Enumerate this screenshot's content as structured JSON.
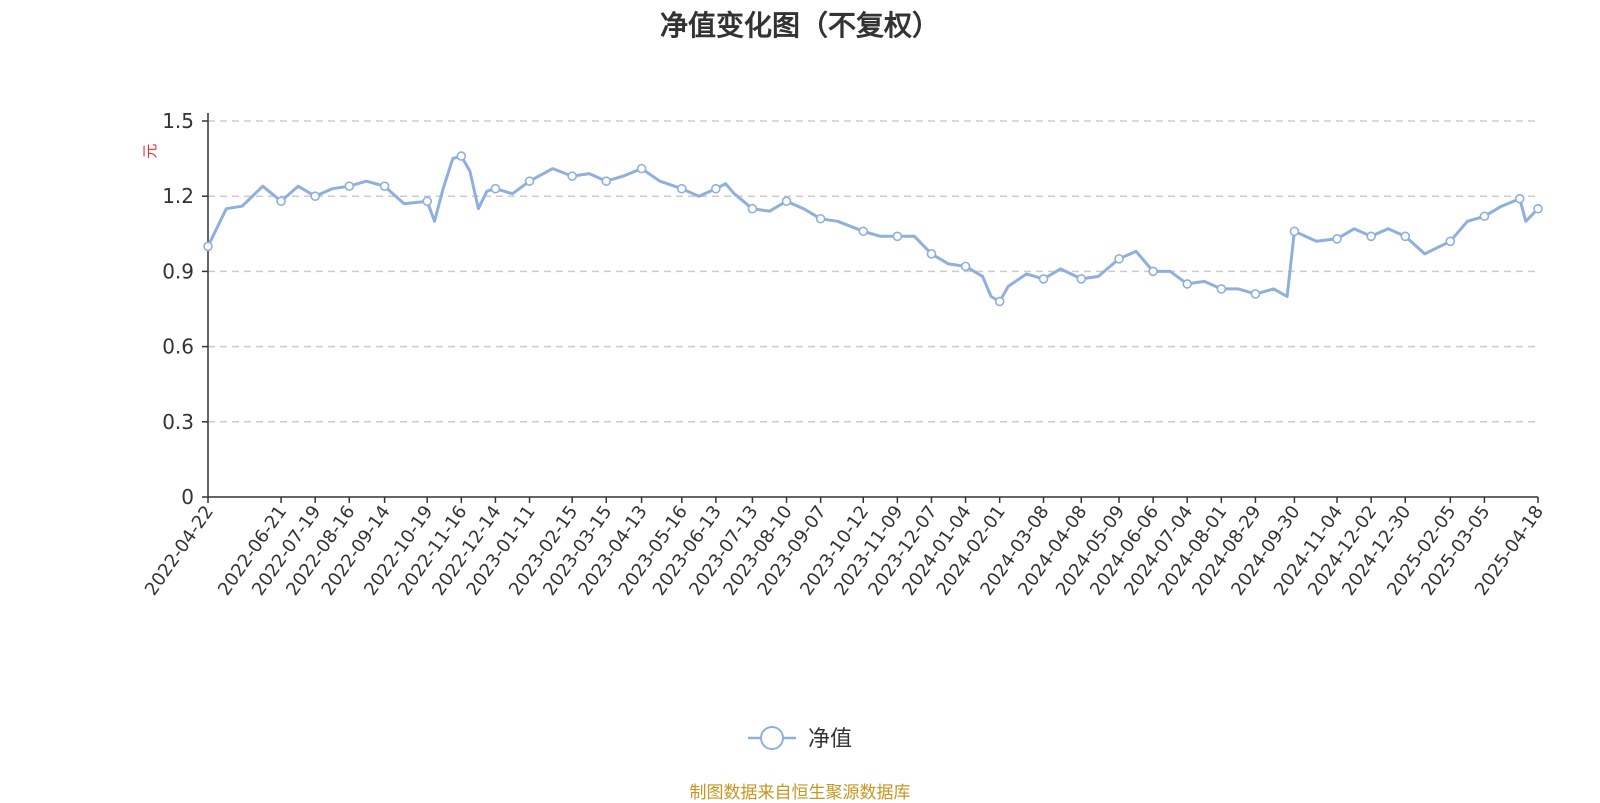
{
  "title": "净值变化图（不复权）",
  "source": "制图数据来自恒生聚源数据库",
  "chart_data": {
    "type": "line",
    "y_unit": "元",
    "ylim": [
      0,
      1.5
    ],
    "y_ticks": [
      "0",
      "0.3",
      "0.6",
      "0.9",
      "1.2",
      "1.5"
    ],
    "grid": "horizontal dashed",
    "legend": "bottom-center",
    "x_ticks": [
      "2022-04-22",
      "2022-06-21",
      "2022-07-19",
      "2022-08-16",
      "2022-09-14",
      "2022-10-19",
      "2022-11-16",
      "2022-12-14",
      "2023-01-11",
      "2023-02-15",
      "2023-03-15",
      "2023-04-13",
      "2023-05-16",
      "2023-06-13",
      "2023-07-13",
      "2023-08-10",
      "2023-09-07",
      "2023-10-12",
      "2023-11-09",
      "2023-12-07",
      "2024-01-04",
      "2024-02-01",
      "2024-03-08",
      "2024-04-08",
      "2024-05-09",
      "2024-06-06",
      "2024-07-04",
      "2024-08-01",
      "2024-08-29",
      "2024-09-30",
      "2024-11-04",
      "2024-12-02",
      "2024-12-30",
      "2025-02-05",
      "2025-03-05",
      "2025-04-18"
    ],
    "series": [
      {
        "name": "净值",
        "color": "#8fb0dc",
        "x": [
          "2022-04-22",
          "2022-05-07",
          "2022-05-20",
          "2022-06-06",
          "2022-06-21",
          "2022-07-05",
          "2022-07-19",
          "2022-08-02",
          "2022-08-16",
          "2022-08-30",
          "2022-09-14",
          "2022-09-30",
          "2022-10-19",
          "2022-10-25",
          "2022-11-01",
          "2022-11-09",
          "2022-11-16",
          "2022-11-23",
          "2022-11-30",
          "2022-12-07",
          "2022-12-14",
          "2022-12-28",
          "2023-01-11",
          "2023-01-30",
          "2023-02-15",
          "2023-03-01",
          "2023-03-15",
          "2023-03-29",
          "2023-04-13",
          "2023-04-28",
          "2023-05-16",
          "2023-05-30",
          "2023-06-13",
          "2023-06-21",
          "2023-06-28",
          "2023-07-13",
          "2023-07-27",
          "2023-08-10",
          "2023-08-24",
          "2023-09-07",
          "2023-09-21",
          "2023-10-12",
          "2023-10-26",
          "2023-11-09",
          "2023-11-23",
          "2023-12-07",
          "2023-12-21",
          "2024-01-04",
          "2024-01-18",
          "2024-01-25",
          "2024-02-01",
          "2024-02-08",
          "2024-02-23",
          "2024-03-08",
          "2024-03-22",
          "2024-04-08",
          "2024-04-22",
          "2024-05-09",
          "2024-05-23",
          "2024-06-06",
          "2024-06-20",
          "2024-07-04",
          "2024-07-18",
          "2024-08-01",
          "2024-08-15",
          "2024-08-29",
          "2024-09-13",
          "2024-09-24",
          "2024-09-30",
          "2024-10-18",
          "2024-11-04",
          "2024-11-18",
          "2024-12-02",
          "2024-12-16",
          "2024-12-30",
          "2025-01-15",
          "2025-02-05",
          "2025-02-19",
          "2025-03-05",
          "2025-03-19",
          "2025-04-03",
          "2025-04-08",
          "2025-04-18"
        ],
        "values": [
          1.0,
          1.15,
          1.16,
          1.24,
          1.18,
          1.24,
          1.2,
          1.23,
          1.24,
          1.26,
          1.24,
          1.17,
          1.18,
          1.1,
          1.23,
          1.35,
          1.36,
          1.3,
          1.15,
          1.22,
          1.23,
          1.21,
          1.26,
          1.31,
          1.28,
          1.29,
          1.26,
          1.28,
          1.31,
          1.26,
          1.23,
          1.2,
          1.23,
          1.25,
          1.21,
          1.15,
          1.14,
          1.18,
          1.15,
          1.11,
          1.1,
          1.06,
          1.04,
          1.04,
          1.04,
          0.97,
          0.93,
          0.92,
          0.88,
          0.8,
          0.78,
          0.84,
          0.89,
          0.87,
          0.91,
          0.87,
          0.88,
          0.95,
          0.98,
          0.9,
          0.9,
          0.85,
          0.86,
          0.83,
          0.83,
          0.81,
          0.83,
          0.8,
          1.06,
          1.02,
          1.03,
          1.07,
          1.04,
          1.07,
          1.04,
          0.97,
          1.02,
          1.1,
          1.12,
          1.16,
          1.19,
          1.1,
          1.15
        ],
        "markers": [
          "2022-04-22",
          "2022-06-21",
          "2022-07-19",
          "2022-08-16",
          "2022-09-14",
          "2022-10-19",
          "2022-11-16",
          "2022-12-14",
          "2023-01-11",
          "2023-02-15",
          "2023-03-15",
          "2023-04-13",
          "2023-05-16",
          "2023-06-13",
          "2023-07-13",
          "2023-08-10",
          "2023-09-07",
          "2023-10-12",
          "2023-11-09",
          "2023-12-07",
          "2024-01-04",
          "2024-02-01",
          "2024-03-08",
          "2024-04-08",
          "2024-05-09",
          "2024-06-06",
          "2024-07-04",
          "2024-08-01",
          "2024-08-29",
          "2024-09-30",
          "2024-11-04",
          "2024-12-02",
          "2024-12-30",
          "2025-02-05",
          "2025-03-05",
          "2025-04-03",
          "2025-04-18"
        ]
      }
    ]
  }
}
